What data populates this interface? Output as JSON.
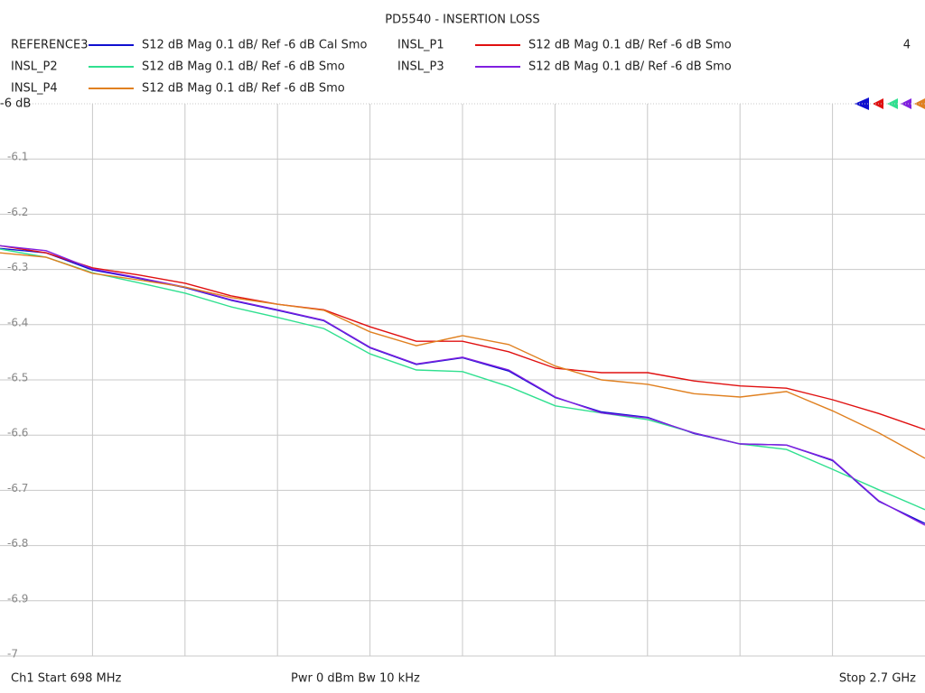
{
  "chart_data": {
    "type": "line",
    "title": "PD5540 - INSERTION LOSS",
    "channel_count": "4",
    "footer": {
      "start": "Ch1  Start  698 MHz",
      "power": "Pwr  0 dBm  Bw  10 kHz",
      "stop": "Stop  2.7 GHz"
    },
    "x": [
      698,
      798,
      898,
      998,
      1099,
      1199,
      1299,
      1399,
      1499,
      1599,
      1699,
      1799,
      1900,
      2000,
      2100,
      2200,
      2300,
      2400,
      2500,
      2600,
      2700
    ],
    "xlim": [
      698,
      2700
    ],
    "ylim": [
      -7,
      -6
    ],
    "yticks": [
      {
        "value": -6,
        "label": "-6 dB"
      },
      -6.1,
      -6.2,
      -6.3,
      -6.4,
      -6.5,
      -6.6,
      -6.7,
      -6.8,
      -6.9,
      -7
    ],
    "grid": true,
    "series": [
      {
        "name": "REFERENCE3",
        "color": "#1010d0",
        "description": "S12  dB Mag  0.1 dB/ Ref -6 dB  Cal Smo",
        "values": [
          -6.262,
          -6.27,
          -6.301,
          -6.316,
          -6.333,
          -6.356,
          -6.374,
          -6.393,
          -6.442,
          -6.472,
          -6.46,
          -6.484,
          -6.532,
          -6.558,
          -6.568,
          -6.597,
          -6.616,
          -6.618,
          -6.646,
          -6.72,
          -6.76
        ]
      },
      {
        "name": "INSL_P1",
        "color": "#e01010",
        "description": "S12  dB Mag  0.1 dB/ Ref -6 dB  Smo",
        "values": [
          -6.257,
          -6.27,
          -6.297,
          -6.31,
          -6.325,
          -6.348,
          -6.363,
          -6.373,
          -6.404,
          -6.43,
          -6.43,
          -6.449,
          -6.479,
          -6.487,
          -6.487,
          -6.502,
          -6.511,
          -6.515,
          -6.536,
          -6.561,
          -6.59
        ]
      },
      {
        "name": "INSL_P2",
        "color": "#30e090",
        "description": "S12  dB Mag  0.1 dB/ Ref -6 dB  Smo",
        "values": [
          -6.263,
          -6.278,
          -6.306,
          -6.324,
          -6.343,
          -6.368,
          -6.387,
          -6.407,
          -6.453,
          -6.482,
          -6.485,
          -6.512,
          -6.547,
          -6.56,
          -6.572,
          -6.596,
          -6.616,
          -6.626,
          -6.662,
          -6.699,
          -6.735
        ]
      },
      {
        "name": "INSL_P3",
        "color": "#8020e0",
        "description": "S12  dB Mag  0.1 dB/ Ref -6 dB  Smo",
        "values": [
          -6.257,
          -6.266,
          -6.299,
          -6.315,
          -6.332,
          -6.355,
          -6.373,
          -6.392,
          -6.441,
          -6.471,
          -6.459,
          -6.482,
          -6.531,
          -6.56,
          -6.569,
          -6.596,
          -6.616,
          -6.618,
          -6.645,
          -6.719,
          -6.763
        ]
      },
      {
        "name": "INSL_P4",
        "color": "#e08020",
        "description": "S12  dB Mag  0.1 dB/ Ref -6 dB  Smo",
        "values": [
          -6.27,
          -6.278,
          -6.307,
          -6.319,
          -6.332,
          -6.351,
          -6.363,
          -6.374,
          -6.413,
          -6.438,
          -6.42,
          -6.436,
          -6.475,
          -6.5,
          -6.508,
          -6.525,
          -6.531,
          -6.521,
          -6.556,
          -6.596,
          -6.642
        ]
      }
    ]
  }
}
